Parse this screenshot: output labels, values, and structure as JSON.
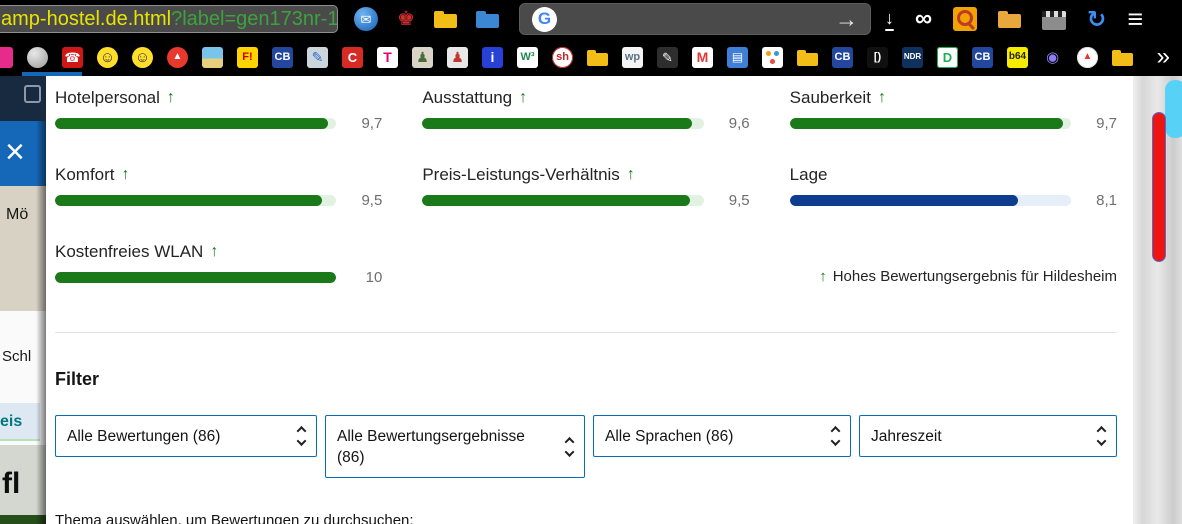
{
  "browser": {
    "url": {
      "main": "amp-hostel.de.html",
      "query": "?label=gen173nr-1"
    },
    "icons": {
      "thunderbird": "✉",
      "red_figure": "♚",
      "google_g": "G",
      "arrow_submit": "→",
      "download": "↓",
      "infinity": "∞",
      "sync": "↻",
      "menu": "≡",
      "overflow": "»"
    },
    "bookmarks": [
      {
        "name": "pink-icon",
        "shape": "tile",
        "bg": "#e62b8a",
        "label": ""
      },
      {
        "name": "sphere-icon",
        "shape": "circle",
        "bg": "radial-gradient(circle at 35% 30%, #e8e8e8, #9a9a9a)",
        "label": ""
      },
      {
        "name": "phonebook-icon",
        "shape": "tile",
        "bg": "#cf1717",
        "fg": "#ffffff",
        "label": "☎",
        "fs": 13
      },
      {
        "name": "smiley-tongue-icon",
        "shape": "circle",
        "bg": "#ffdf2b",
        "fg": "#333333",
        "label": "☺",
        "fs": 15
      },
      {
        "name": "smiley-icon",
        "shape": "circle",
        "bg": "#ffdf2b",
        "fg": "#333333",
        "label": "☺",
        "fs": 15
      },
      {
        "name": "flame-icon",
        "shape": "circle",
        "bg": "#e8392e",
        "fg": "#ffffff",
        "label": "▲",
        "fs": 10
      },
      {
        "name": "beach-icon",
        "shape": "tile",
        "bg": "linear-gradient(#79c4ea 55%, #e7cf7d 55%)",
        "label": ""
      },
      {
        "name": "fritz-icon",
        "shape": "tile",
        "bg": "#ffd400",
        "fg": "#cc0000",
        "label": "F!",
        "fs": 11
      },
      {
        "name": "cb-icon",
        "shape": "tile",
        "bg": "#23479c",
        "fg": "#ffffff",
        "label": "CB",
        "fs": 11
      },
      {
        "name": "clipboard-pencil-icon",
        "shape": "tile",
        "bg": "#cdd5dc",
        "fg": "#2a6fd1",
        "label": "✎",
        "fs": 14
      },
      {
        "name": "c-icon",
        "shape": "tile",
        "bg": "#d62a24",
        "fg": "#ffffff",
        "label": "C",
        "fs": 13
      },
      {
        "name": "telekom-icon",
        "shape": "tile",
        "bg": "#ffffff",
        "fg": "#e20074",
        "label": "T",
        "fs": 14
      },
      {
        "name": "figure-icon",
        "shape": "tile",
        "bg": "#d9d4c6",
        "fg": "#4a6b3a",
        "label": "♟",
        "fs": 14
      },
      {
        "name": "figures-icon",
        "shape": "tile",
        "bg": "#e8e8e8",
        "fg": "#c0392b",
        "label": "♟",
        "fs": 14
      },
      {
        "name": "info-icon",
        "shape": "tile",
        "bg": "#2741d6",
        "fg": "#ffffff",
        "label": "i",
        "fs": 14
      },
      {
        "name": "w3schools-icon",
        "shape": "tile",
        "bg": "#ffffff",
        "fg": "#1d8a52",
        "label": "W³",
        "fs": 11
      },
      {
        "name": "sh-icon",
        "shape": "circle",
        "bg": "#ffffff",
        "fg": "#c62828",
        "label": "sh",
        "fs": 11,
        "border": "#c62828"
      },
      {
        "name": "folder-icon",
        "shape": "folder",
        "bg": "#f2bd17"
      },
      {
        "name": "wp-icon",
        "shape": "tile",
        "bg": "#f4f4f4",
        "fg": "#5a7184",
        "label": "wp",
        "fs": 11
      },
      {
        "name": "pen-icon",
        "shape": "tile",
        "bg": "#2e2e2e",
        "fg": "#ffffff",
        "label": "✎",
        "fs": 13
      },
      {
        "name": "gmail-icon",
        "shape": "tile",
        "bg": "#ffffff",
        "fg": "#e53935",
        "label": "M",
        "fs": 14
      },
      {
        "name": "chat-icon",
        "shape": "tile",
        "bg": "#3f7fd6",
        "fg": "#ffffff",
        "label": "▤",
        "fs": 12
      },
      {
        "name": "dots-icon",
        "shape": "dots",
        "bg": "#ffffff"
      },
      {
        "name": "folder-icon",
        "shape": "folder",
        "bg": "#f2bd17"
      },
      {
        "name": "cb-icon",
        "shape": "tile",
        "bg": "#23479c",
        "fg": "#ffffff",
        "label": "CB",
        "fs": 11
      },
      {
        "name": "brackets-icon",
        "shape": "tile",
        "bg": "#101010",
        "fg": "#ffffff",
        "label": "[)",
        "fs": 11
      },
      {
        "name": "ndr-icon",
        "shape": "tile",
        "bg": "#10305e",
        "fg": "#ffffff",
        "label": "NDR",
        "fs": 8
      },
      {
        "name": "d-icon",
        "shape": "tile",
        "bg": "#ffffff",
        "fg": "#1faf54",
        "label": "D",
        "fs": 13,
        "border": "#1faf54"
      },
      {
        "name": "cb-icon",
        "shape": "tile",
        "bg": "#23479c",
        "fg": "#ffffff",
        "label": "CB",
        "fs": 11
      },
      {
        "name": "b64-icon",
        "shape": "tile",
        "bg": "#f5ec00",
        "fg": "#222222",
        "label": "b64",
        "fs": 10
      },
      {
        "name": "location-pin-icon",
        "shape": "tile",
        "bg": "transparent",
        "fg": "#8a7ef0",
        "label": "◉",
        "fs": 15
      },
      {
        "name": "flame2-icon",
        "shape": "circle",
        "bg": "#ffffff",
        "fg": "#e8392e",
        "label": "▲",
        "fs": 10,
        "border": "#dddddd"
      },
      {
        "name": "folder-icon",
        "shape": "folder",
        "bg": "#f2bd17"
      }
    ]
  },
  "page": {
    "ratings": [
      {
        "label": "Hotelpersonal",
        "arrow": true,
        "score": "9,7",
        "percent": 97,
        "theme": "green"
      },
      {
        "label": "Ausstattung",
        "arrow": true,
        "score": "9,6",
        "percent": 96,
        "theme": "green"
      },
      {
        "label": "Sauberkeit",
        "arrow": true,
        "score": "9,7",
        "percent": 97,
        "theme": "green"
      },
      {
        "label": "Komfort",
        "arrow": true,
        "score": "9,5",
        "percent": 95,
        "theme": "green"
      },
      {
        "label": "Preis-Leistungs-Verhältnis",
        "arrow": true,
        "score": "9,5",
        "percent": 95,
        "theme": "green"
      },
      {
        "label": "Lage",
        "arrow": false,
        "score": "8,1",
        "percent": 81,
        "theme": "blue"
      },
      {
        "label": "Kostenfreies WLAN",
        "arrow": true,
        "score": "10",
        "percent": 100,
        "theme": "green"
      }
    ],
    "note": {
      "arrow": "↑",
      "text": "Hohes Bewertungsergebnis für Hildesheim"
    },
    "filter": {
      "title": "Filter",
      "dropdowns": [
        {
          "label": "Alle Bewertungen (86)"
        },
        {
          "label": "Alle Bewertungsergebnisse (86)"
        },
        {
          "label": "Alle Sprachen (86)"
        },
        {
          "label": "Jahreszeit"
        }
      ]
    },
    "search_hint": "Thema auswählen, um Bewertungen zu durchsuchen:",
    "left_fragments": {
      "close": "×",
      "top": "Mö",
      "middle": "Schl",
      "teal": "eis",
      "bottom": "fl"
    },
    "colors": {
      "green_fill": "#1a7a1a",
      "green_track": "#e2f1e2",
      "blue_fill": "#0e3d8f",
      "blue_track": "#e5eef9",
      "accent_blue": "#0a6cb8",
      "scroll_thumb": "#57d2f6",
      "scroll_marker": "#ee1410"
    }
  }
}
